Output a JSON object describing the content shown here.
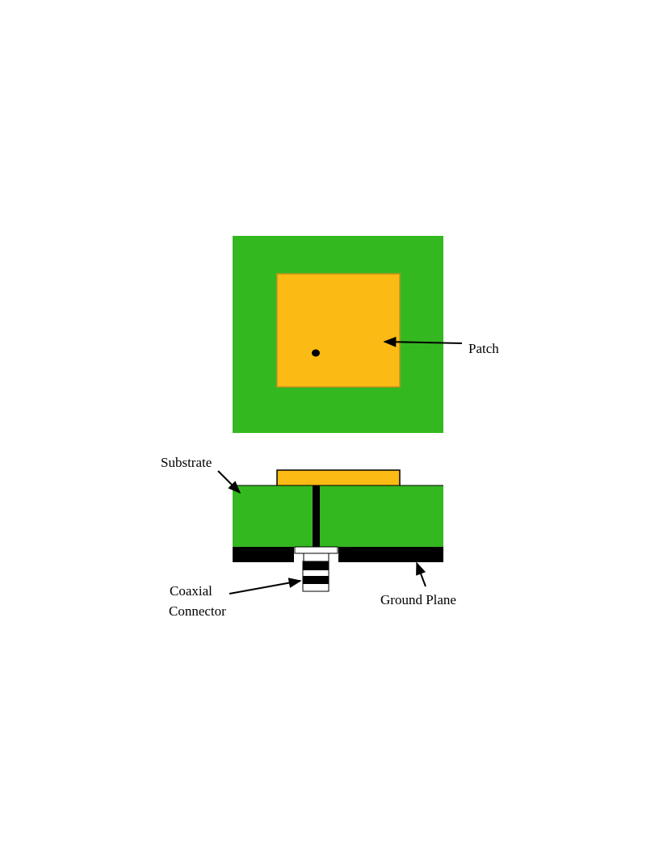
{
  "colors": {
    "substrate": "#34b820",
    "patch": "#fbbb14",
    "patch_edge": "#c8901a",
    "ground": "#000000",
    "background": "#ffffff"
  },
  "labels": {
    "patch": "Patch",
    "substrate": "Substrate",
    "coax_line1": "Coaxial",
    "coax_line2": "Connector",
    "ground_plane": "Ground Plane"
  }
}
